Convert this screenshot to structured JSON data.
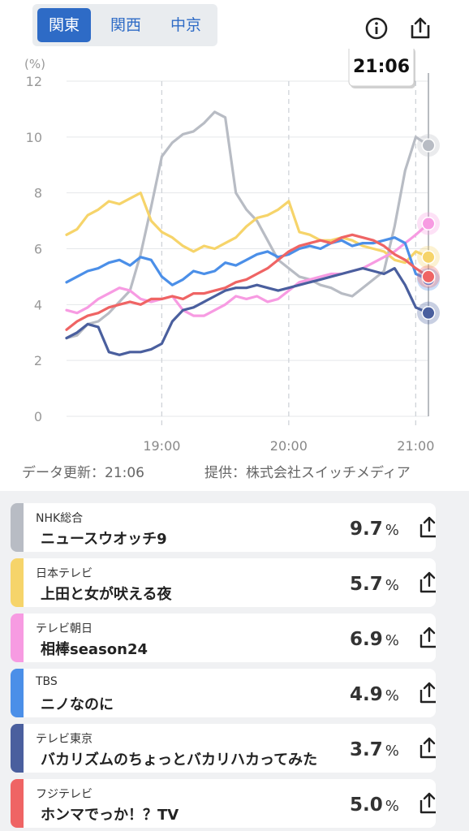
{
  "region_tabs": [
    {
      "label": "関東",
      "active": true
    },
    {
      "label": "関西",
      "active": false
    },
    {
      "label": "中京",
      "active": false
    }
  ],
  "icons": {
    "info": "info-icon",
    "share": "share-icon"
  },
  "cursor_time": "21:06",
  "chart_data": {
    "type": "line",
    "y_unit_label": "(%)",
    "ylim": [
      0,
      12
    ],
    "yticks": [
      "0",
      "2",
      "4",
      "6",
      "8",
      "10",
      "12"
    ],
    "xtick_labels": [
      "19:00",
      "20:00",
      "21:00"
    ],
    "x_start": "18:15",
    "x_end": "21:06",
    "series": [
      {
        "name": "NHK総合",
        "color": "#b8bcc4",
        "points": [
          [
            "18:15",
            2.8
          ],
          [
            "18:20",
            2.9
          ],
          [
            "18:25",
            3.3
          ],
          [
            "18:30",
            3.4
          ],
          [
            "18:35",
            3.7
          ],
          [
            "18:40",
            4.1
          ],
          [
            "18:45",
            4.5
          ],
          [
            "18:50",
            5.8
          ],
          [
            "18:55",
            7.5
          ],
          [
            "19:00",
            9.3
          ],
          [
            "19:05",
            9.8
          ],
          [
            "19:10",
            10.1
          ],
          [
            "19:15",
            10.2
          ],
          [
            "19:20",
            10.5
          ],
          [
            "19:25",
            10.9
          ],
          [
            "19:30",
            10.7
          ],
          [
            "19:35",
            8.0
          ],
          [
            "19:40",
            7.4
          ],
          [
            "19:45",
            7.0
          ],
          [
            "19:50",
            6.3
          ],
          [
            "19:55",
            5.6
          ],
          [
            "20:00",
            5.3
          ],
          [
            "20:05",
            5.0
          ],
          [
            "20:10",
            4.9
          ],
          [
            "20:15",
            4.7
          ],
          [
            "20:20",
            4.6
          ],
          [
            "20:25",
            4.4
          ],
          [
            "20:30",
            4.3
          ],
          [
            "20:35",
            4.6
          ],
          [
            "20:40",
            4.9
          ],
          [
            "20:45",
            5.2
          ],
          [
            "20:50",
            6.8
          ],
          [
            "20:55",
            8.8
          ],
          [
            "21:00",
            10.0
          ],
          [
            "21:06",
            9.7
          ]
        ]
      },
      {
        "name": "日本テレビ",
        "color": "#f6d46a",
        "points": [
          [
            "18:15",
            6.5
          ],
          [
            "18:20",
            6.7
          ],
          [
            "18:25",
            7.2
          ],
          [
            "18:30",
            7.4
          ],
          [
            "18:35",
            7.7
          ],
          [
            "18:40",
            7.6
          ],
          [
            "18:45",
            7.8
          ],
          [
            "18:50",
            8.0
          ],
          [
            "18:55",
            7.0
          ],
          [
            "19:00",
            6.6
          ],
          [
            "19:05",
            6.4
          ],
          [
            "19:10",
            6.1
          ],
          [
            "19:15",
            5.9
          ],
          [
            "19:20",
            6.1
          ],
          [
            "19:25",
            6.0
          ],
          [
            "19:30",
            6.2
          ],
          [
            "19:35",
            6.4
          ],
          [
            "19:40",
            6.8
          ],
          [
            "19:45",
            7.1
          ],
          [
            "19:50",
            7.2
          ],
          [
            "19:55",
            7.4
          ],
          [
            "20:00",
            7.7
          ],
          [
            "20:05",
            6.6
          ],
          [
            "20:10",
            6.5
          ],
          [
            "20:15",
            6.3
          ],
          [
            "20:20",
            6.3
          ],
          [
            "20:25",
            6.4
          ],
          [
            "20:30",
            6.3
          ],
          [
            "20:35",
            6.1
          ],
          [
            "20:40",
            6.0
          ],
          [
            "20:45",
            5.9
          ],
          [
            "20:50",
            5.6
          ],
          [
            "20:55",
            5.5
          ],
          [
            "21:00",
            5.9
          ],
          [
            "21:06",
            5.7
          ]
        ]
      },
      {
        "name": "テレビ朝日",
        "color": "#f79be2",
        "points": [
          [
            "18:15",
            3.8
          ],
          [
            "18:20",
            3.7
          ],
          [
            "18:25",
            3.9
          ],
          [
            "18:30",
            4.2
          ],
          [
            "18:35",
            4.4
          ],
          [
            "18:40",
            4.6
          ],
          [
            "18:45",
            4.5
          ],
          [
            "18:50",
            4.2
          ],
          [
            "18:55",
            4.1
          ],
          [
            "19:00",
            4.2
          ],
          [
            "19:05",
            4.3
          ],
          [
            "19:10",
            3.8
          ],
          [
            "19:15",
            3.6
          ],
          [
            "19:20",
            3.6
          ],
          [
            "19:25",
            3.8
          ],
          [
            "19:30",
            4.0
          ],
          [
            "19:35",
            4.3
          ],
          [
            "19:40",
            4.2
          ],
          [
            "19:45",
            4.3
          ],
          [
            "19:50",
            4.1
          ],
          [
            "19:55",
            4.2
          ],
          [
            "20:00",
            4.5
          ],
          [
            "20:05",
            4.8
          ],
          [
            "20:10",
            4.9
          ],
          [
            "20:15",
            5.0
          ],
          [
            "20:20",
            5.1
          ],
          [
            "20:25",
            5.1
          ],
          [
            "20:30",
            5.2
          ],
          [
            "20:35",
            5.3
          ],
          [
            "20:40",
            5.5
          ],
          [
            "20:45",
            5.7
          ],
          [
            "20:50",
            5.9
          ],
          [
            "20:55",
            6.2
          ],
          [
            "21:00",
            6.5
          ],
          [
            "21:06",
            6.9
          ]
        ]
      },
      {
        "name": "TBS",
        "color": "#4b8fe8",
        "points": [
          [
            "18:15",
            4.8
          ],
          [
            "18:20",
            5.0
          ],
          [
            "18:25",
            5.2
          ],
          [
            "18:30",
            5.3
          ],
          [
            "18:35",
            5.5
          ],
          [
            "18:40",
            5.6
          ],
          [
            "18:45",
            5.4
          ],
          [
            "18:50",
            5.7
          ],
          [
            "18:55",
            5.6
          ],
          [
            "19:00",
            5.0
          ],
          [
            "19:05",
            4.7
          ],
          [
            "19:10",
            4.9
          ],
          [
            "19:15",
            5.2
          ],
          [
            "19:20",
            5.1
          ],
          [
            "19:25",
            5.2
          ],
          [
            "19:30",
            5.5
          ],
          [
            "19:35",
            5.4
          ],
          [
            "19:40",
            5.6
          ],
          [
            "19:45",
            5.8
          ],
          [
            "19:50",
            5.9
          ],
          [
            "19:55",
            5.7
          ],
          [
            "20:00",
            5.8
          ],
          [
            "20:05",
            6.0
          ],
          [
            "20:10",
            6.1
          ],
          [
            "20:15",
            6.0
          ],
          [
            "20:20",
            6.2
          ],
          [
            "20:25",
            6.3
          ],
          [
            "20:30",
            6.1
          ],
          [
            "20:35",
            6.2
          ],
          [
            "20:40",
            6.2
          ],
          [
            "20:45",
            6.3
          ],
          [
            "20:50",
            6.4
          ],
          [
            "20:55",
            6.2
          ],
          [
            "21:00",
            5.1
          ],
          [
            "21:06",
            4.9
          ]
        ]
      },
      {
        "name": "テレビ東京",
        "color": "#4a5f9e",
        "points": [
          [
            "18:15",
            2.8
          ],
          [
            "18:20",
            3.0
          ],
          [
            "18:25",
            3.3
          ],
          [
            "18:30",
            3.2
          ],
          [
            "18:35",
            2.3
          ],
          [
            "18:40",
            2.2
          ],
          [
            "18:45",
            2.3
          ],
          [
            "18:50",
            2.3
          ],
          [
            "18:55",
            2.4
          ],
          [
            "19:00",
            2.6
          ],
          [
            "19:05",
            3.4
          ],
          [
            "19:10",
            3.8
          ],
          [
            "19:15",
            3.9
          ],
          [
            "19:20",
            4.1
          ],
          [
            "19:25",
            4.3
          ],
          [
            "19:30",
            4.5
          ],
          [
            "19:35",
            4.6
          ],
          [
            "19:40",
            4.6
          ],
          [
            "19:45",
            4.7
          ],
          [
            "19:50",
            4.6
          ],
          [
            "19:55",
            4.5
          ],
          [
            "20:00",
            4.6
          ],
          [
            "20:05",
            4.7
          ],
          [
            "20:10",
            4.8
          ],
          [
            "20:15",
            4.9
          ],
          [
            "20:20",
            5.0
          ],
          [
            "20:25",
            5.1
          ],
          [
            "20:30",
            5.2
          ],
          [
            "20:35",
            5.3
          ],
          [
            "20:40",
            5.2
          ],
          [
            "20:45",
            5.1
          ],
          [
            "20:50",
            5.3
          ],
          [
            "20:55",
            4.7
          ],
          [
            "21:00",
            3.9
          ],
          [
            "21:06",
            3.7
          ]
        ]
      },
      {
        "name": "フジテレビ",
        "color": "#ef6464",
        "points": [
          [
            "18:15",
            3.1
          ],
          [
            "18:20",
            3.4
          ],
          [
            "18:25",
            3.6
          ],
          [
            "18:30",
            3.7
          ],
          [
            "18:35",
            3.9
          ],
          [
            "18:40",
            4.0
          ],
          [
            "18:45",
            4.1
          ],
          [
            "18:50",
            4.0
          ],
          [
            "18:55",
            4.2
          ],
          [
            "19:00",
            4.2
          ],
          [
            "19:05",
            4.3
          ],
          [
            "19:10",
            4.2
          ],
          [
            "19:15",
            4.4
          ],
          [
            "19:20",
            4.4
          ],
          [
            "19:25",
            4.5
          ],
          [
            "19:30",
            4.6
          ],
          [
            "19:35",
            4.8
          ],
          [
            "19:40",
            4.9
          ],
          [
            "19:45",
            5.1
          ],
          [
            "19:50",
            5.3
          ],
          [
            "19:55",
            5.6
          ],
          [
            "20:00",
            5.9
          ],
          [
            "20:05",
            6.1
          ],
          [
            "20:10",
            6.2
          ],
          [
            "20:15",
            6.3
          ],
          [
            "20:20",
            6.2
          ],
          [
            "20:25",
            6.4
          ],
          [
            "20:30",
            6.5
          ],
          [
            "20:35",
            6.4
          ],
          [
            "20:40",
            6.3
          ],
          [
            "20:45",
            6.1
          ],
          [
            "20:50",
            5.8
          ],
          [
            "20:55",
            5.6
          ],
          [
            "21:00",
            5.3
          ],
          [
            "21:06",
            5.0
          ]
        ]
      }
    ]
  },
  "footer": {
    "updated": "データ更新：21:06",
    "provider": "提供：株式会社スイッチメディア"
  },
  "programs": [
    {
      "channel": "NHK総合",
      "title": "ニュースウオッチ9",
      "value": "9.7",
      "unit": "%",
      "color": "#b8bcc4"
    },
    {
      "channel": "日本テレビ",
      "title": "上田と女が吠える夜",
      "value": "5.7",
      "unit": "%",
      "color": "#f6d46a"
    },
    {
      "channel": "テレビ朝日",
      "title": "相棒season24",
      "value": "6.9",
      "unit": "%",
      "color": "#f79be2"
    },
    {
      "channel": "TBS",
      "title": "ニノなのに",
      "value": "4.9",
      "unit": "%",
      "color": "#4b8fe8"
    },
    {
      "channel": "テレビ東京",
      "title": "バカリズムのちょっとバカリハカってみた",
      "value": "3.7",
      "unit": "%",
      "color": "#4a5f9e"
    },
    {
      "channel": "フジテレビ",
      "title": "ホンマでっか！？TV",
      "value": "5.0",
      "unit": "%",
      "color": "#ef6464"
    }
  ]
}
